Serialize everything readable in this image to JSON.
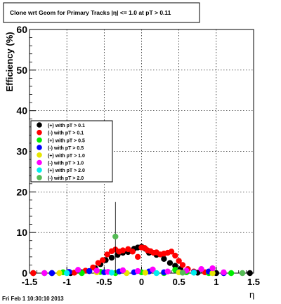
{
  "chart_data": {
    "type": "scatter",
    "title": "Clone wrt Geom for Primary Tracks |η| <= 1.0 at pT > 0.11",
    "xlabel": "η",
    "ylabel": "Efficiency (%)",
    "xlim": [
      -1.5,
      1.5
    ],
    "ylim": [
      0,
      60
    ],
    "x_ticks": [
      "-1.5",
      "-1",
      "-0.5",
      "0",
      "0.5",
      "1",
      "1.5"
    ],
    "y_ticks": [
      "0",
      "10",
      "20",
      "30",
      "40",
      "50",
      "60"
    ],
    "grid": true,
    "legend_position": "center-left",
    "timestamp": "Fri Feb  1 10:30:10 2013",
    "series": [
      {
        "name": "(+) with pT > 0.1",
        "color": "#000000",
        "points": [
          [
            -1.45,
            0
          ],
          [
            -1.2,
            0
          ],
          [
            -0.95,
            0
          ],
          [
            -0.8,
            0.2
          ],
          [
            -0.7,
            0.5
          ],
          [
            -0.62,
            1.2
          ],
          [
            -0.55,
            2.2
          ],
          [
            -0.48,
            3.2
          ],
          [
            -0.4,
            3.8
          ],
          [
            -0.32,
            4.5
          ],
          [
            -0.25,
            5.0
          ],
          [
            -0.18,
            5.2
          ],
          [
            -0.1,
            6.0
          ],
          [
            -0.05,
            6.3
          ],
          [
            0.0,
            6.5
          ],
          [
            0.05,
            6.0
          ],
          [
            0.1,
            5.0
          ],
          [
            0.2,
            4.5
          ],
          [
            0.3,
            3.5
          ],
          [
            0.38,
            2.5
          ],
          [
            0.45,
            1.8
          ],
          [
            0.52,
            1.0
          ],
          [
            0.6,
            0.4
          ],
          [
            0.75,
            0.1
          ],
          [
            1.0,
            0
          ],
          [
            1.45,
            0
          ]
        ]
      },
      {
        "name": "(-) with pT > 0.1",
        "color": "#ff0000",
        "points": [
          [
            -1.45,
            0
          ],
          [
            -0.9,
            0.1
          ],
          [
            -0.75,
            0.6
          ],
          [
            -0.65,
            1.4
          ],
          [
            -0.58,
            2.5
          ],
          [
            -0.52,
            3.2
          ],
          [
            -0.46,
            4.6
          ],
          [
            -0.4,
            5.4
          ],
          [
            -0.35,
            5.8
          ],
          [
            -0.3,
            5.3
          ],
          [
            -0.25,
            5.6
          ],
          [
            -0.18,
            5.9
          ],
          [
            -0.12,
            5.3
          ],
          [
            -0.05,
            4.0
          ],
          [
            0.0,
            6.3
          ],
          [
            0.04,
            6.2
          ],
          [
            0.08,
            5.6
          ],
          [
            0.12,
            5.4
          ],
          [
            0.16,
            5.0
          ],
          [
            0.2,
            5.1
          ],
          [
            0.25,
            4.6
          ],
          [
            0.3,
            4.8
          ],
          [
            0.35,
            5.0
          ],
          [
            0.4,
            5.3
          ],
          [
            0.45,
            4.3
          ],
          [
            0.5,
            3.0
          ],
          [
            0.55,
            2.0
          ],
          [
            0.62,
            1.0
          ],
          [
            0.7,
            0.4
          ],
          [
            0.85,
            0.2
          ],
          [
            1.1,
            0
          ]
        ]
      },
      {
        "name": "(+) with pT > 0.5",
        "color": "#00ee00",
        "points": [
          [
            -1.3,
            0
          ],
          [
            -1.05,
            0.2
          ],
          [
            -0.8,
            0
          ],
          [
            -0.55,
            0.3
          ],
          [
            -0.35,
            0
          ],
          [
            0.0,
            0.2
          ],
          [
            0.3,
            0
          ],
          [
            0.45,
            0.8
          ],
          [
            0.6,
            0.2
          ],
          [
            0.9,
            0
          ],
          [
            1.2,
            0
          ]
        ]
      },
      {
        "name": "(-) with pT > 0.5",
        "color": "#0000ff",
        "points": [
          [
            -1.2,
            0
          ],
          [
            -0.97,
            0.3
          ],
          [
            -0.7,
            0.5
          ],
          [
            -0.5,
            0.2
          ],
          [
            -0.3,
            0.4
          ],
          [
            -0.1,
            0.2
          ],
          [
            0.1,
            0.4
          ],
          [
            0.3,
            0.2
          ],
          [
            0.5,
            0.3
          ],
          [
            0.7,
            0.2
          ],
          [
            0.9,
            0.4
          ],
          [
            1.1,
            0
          ]
        ]
      },
      {
        "name": "(+) with pT > 1.0",
        "color": "#e6e600",
        "points": [
          [
            -1.1,
            0
          ],
          [
            -0.6,
            0.2
          ],
          [
            -0.2,
            0
          ],
          [
            0.05,
            0.1
          ],
          [
            0.5,
            0.2
          ],
          [
            0.95,
            0
          ]
        ]
      },
      {
        "name": "(-) with pT > 1.0",
        "color": "#ff00ff",
        "points": [
          [
            -1.3,
            0
          ],
          [
            -0.85,
            0.8
          ],
          [
            -0.6,
            0.6
          ],
          [
            -0.45,
            0.3
          ],
          [
            -0.25,
            0.7
          ],
          [
            -0.05,
            0.5
          ],
          [
            0.15,
            0.9
          ],
          [
            0.35,
            0.4
          ],
          [
            0.6,
            0.6
          ],
          [
            0.8,
            1.0
          ],
          [
            0.95,
            1.2
          ],
          [
            1.1,
            0.2
          ]
        ]
      },
      {
        "name": "(+) with pT > 2.0",
        "color": "#00eeee",
        "points": [
          [
            -1.0,
            0
          ],
          [
            -0.4,
            0.1
          ],
          [
            0.2,
            0
          ],
          [
            0.7,
            0.1
          ]
        ]
      },
      {
        "name": "(-) with pT > 2.0",
        "color": "#55bb55",
        "points": [
          [
            -0.35,
            9.0
          ],
          [
            0.55,
            0.1
          ],
          [
            1.35,
            0
          ]
        ],
        "error_bar_index": 0,
        "error_bar_range": [
          0,
          17.5
        ]
      }
    ]
  }
}
